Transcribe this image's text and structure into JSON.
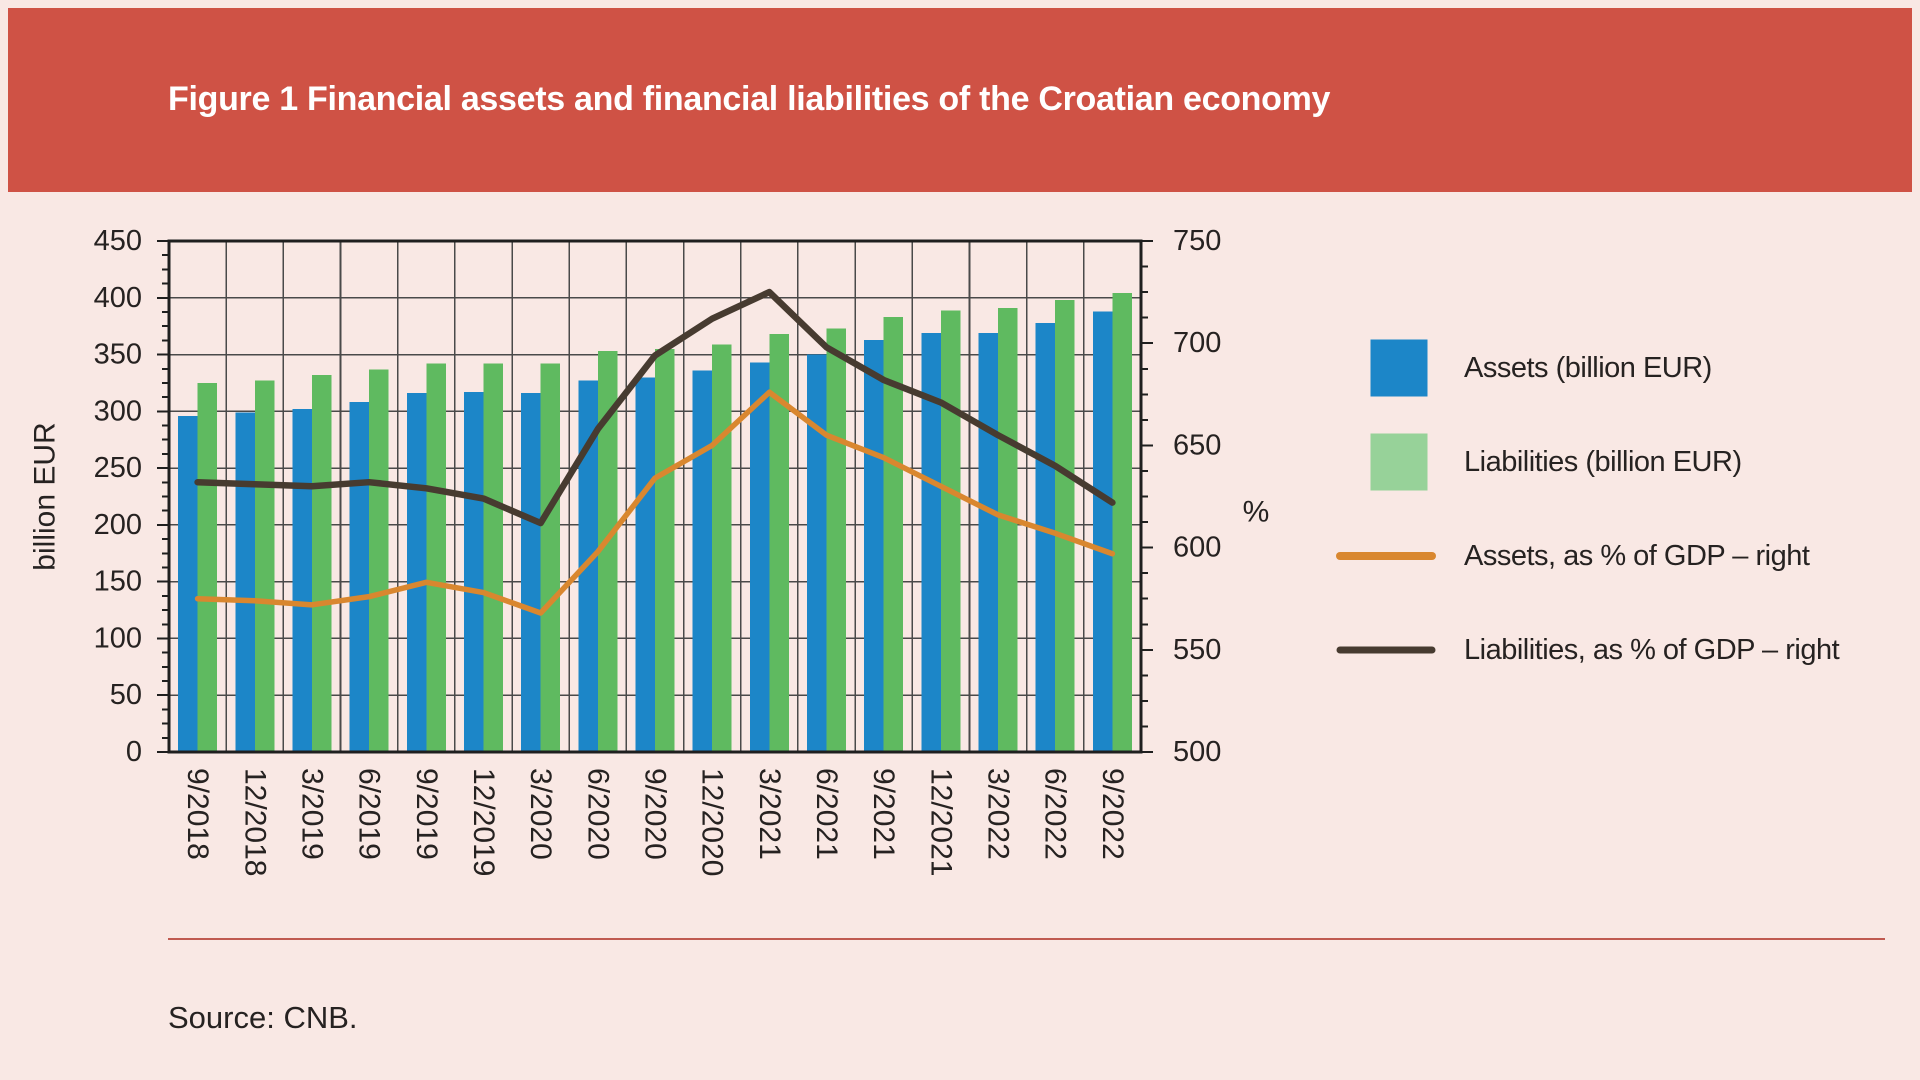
{
  "header": {
    "title": "Figure 1 Financial assets and financial liabilities of the Croatian economy"
  },
  "source": {
    "text": "Source: CNB."
  },
  "colors": {
    "background": "#f9e8e4",
    "banner": "#cf5245",
    "title_text": "#ffffff",
    "bar_assets": "#1c86c8",
    "bar_liabilities": "#5fba60",
    "legend_liabilities_swatch": "#97d299",
    "line_assets_pct": "#d9872f",
    "line_liabilities_pct": "#473b30",
    "grid": "#4a4a4a",
    "border": "#1f1f1f",
    "text": "#262221",
    "separator": "#c05a50"
  },
  "chart_data": {
    "type": "bar",
    "title": "Figure 1 Financial assets and financial liabilities of the Croatian economy",
    "categories": [
      "9/2018",
      "12/2018",
      "3/2019",
      "6/2019",
      "9/2019",
      "12/2019",
      "3/2020",
      "6/2020",
      "9/2020",
      "12/2020",
      "3/2021",
      "6/2021",
      "9/2021",
      "12/2021",
      "3/2022",
      "6/2022",
      "9/2022"
    ],
    "series": [
      {
        "name": "Assets (billion EUR)",
        "type": "bar",
        "axis": "left",
        "values": [
          296,
          299,
          302,
          308,
          316,
          317,
          316,
          327,
          330,
          336,
          343,
          350,
          363,
          369,
          369,
          378,
          388
        ]
      },
      {
        "name": "Liabilities (billion EUR)",
        "type": "bar",
        "axis": "left",
        "values": [
          325,
          327,
          332,
          337,
          342,
          342,
          342,
          353,
          355,
          359,
          368,
          373,
          383,
          389,
          391,
          398,
          404
        ]
      },
      {
        "name": "Assets, as % of GDP – right",
        "type": "line",
        "axis": "right",
        "values": [
          575,
          574,
          572,
          576,
          583,
          578,
          568,
          598,
          634,
          650,
          676,
          655,
          644,
          630,
          616,
          607,
          597
        ]
      },
      {
        "name": "Liabilities, as % of GDP – right",
        "type": "line",
        "axis": "right",
        "values": [
          632,
          631,
          630,
          632,
          629,
          624,
          612,
          658,
          694,
          712,
          725,
          698,
          682,
          671,
          655,
          640,
          622
        ]
      }
    ],
    "left_axis": {
      "label": "billion EUR",
      "min": 0,
      "max": 750,
      "tick_max": 450,
      "step": 50,
      "tick_labels": [
        "0",
        "50",
        "100",
        "150",
        "200",
        "250",
        "300",
        "350",
        "400",
        "450"
      ]
    },
    "right_axis": {
      "label": "%",
      "min": 500,
      "max": 750,
      "step": 50,
      "tick_labels": [
        "500",
        "550",
        "600",
        "650",
        "700",
        "750"
      ]
    },
    "grid": true,
    "legend_position": "right"
  }
}
